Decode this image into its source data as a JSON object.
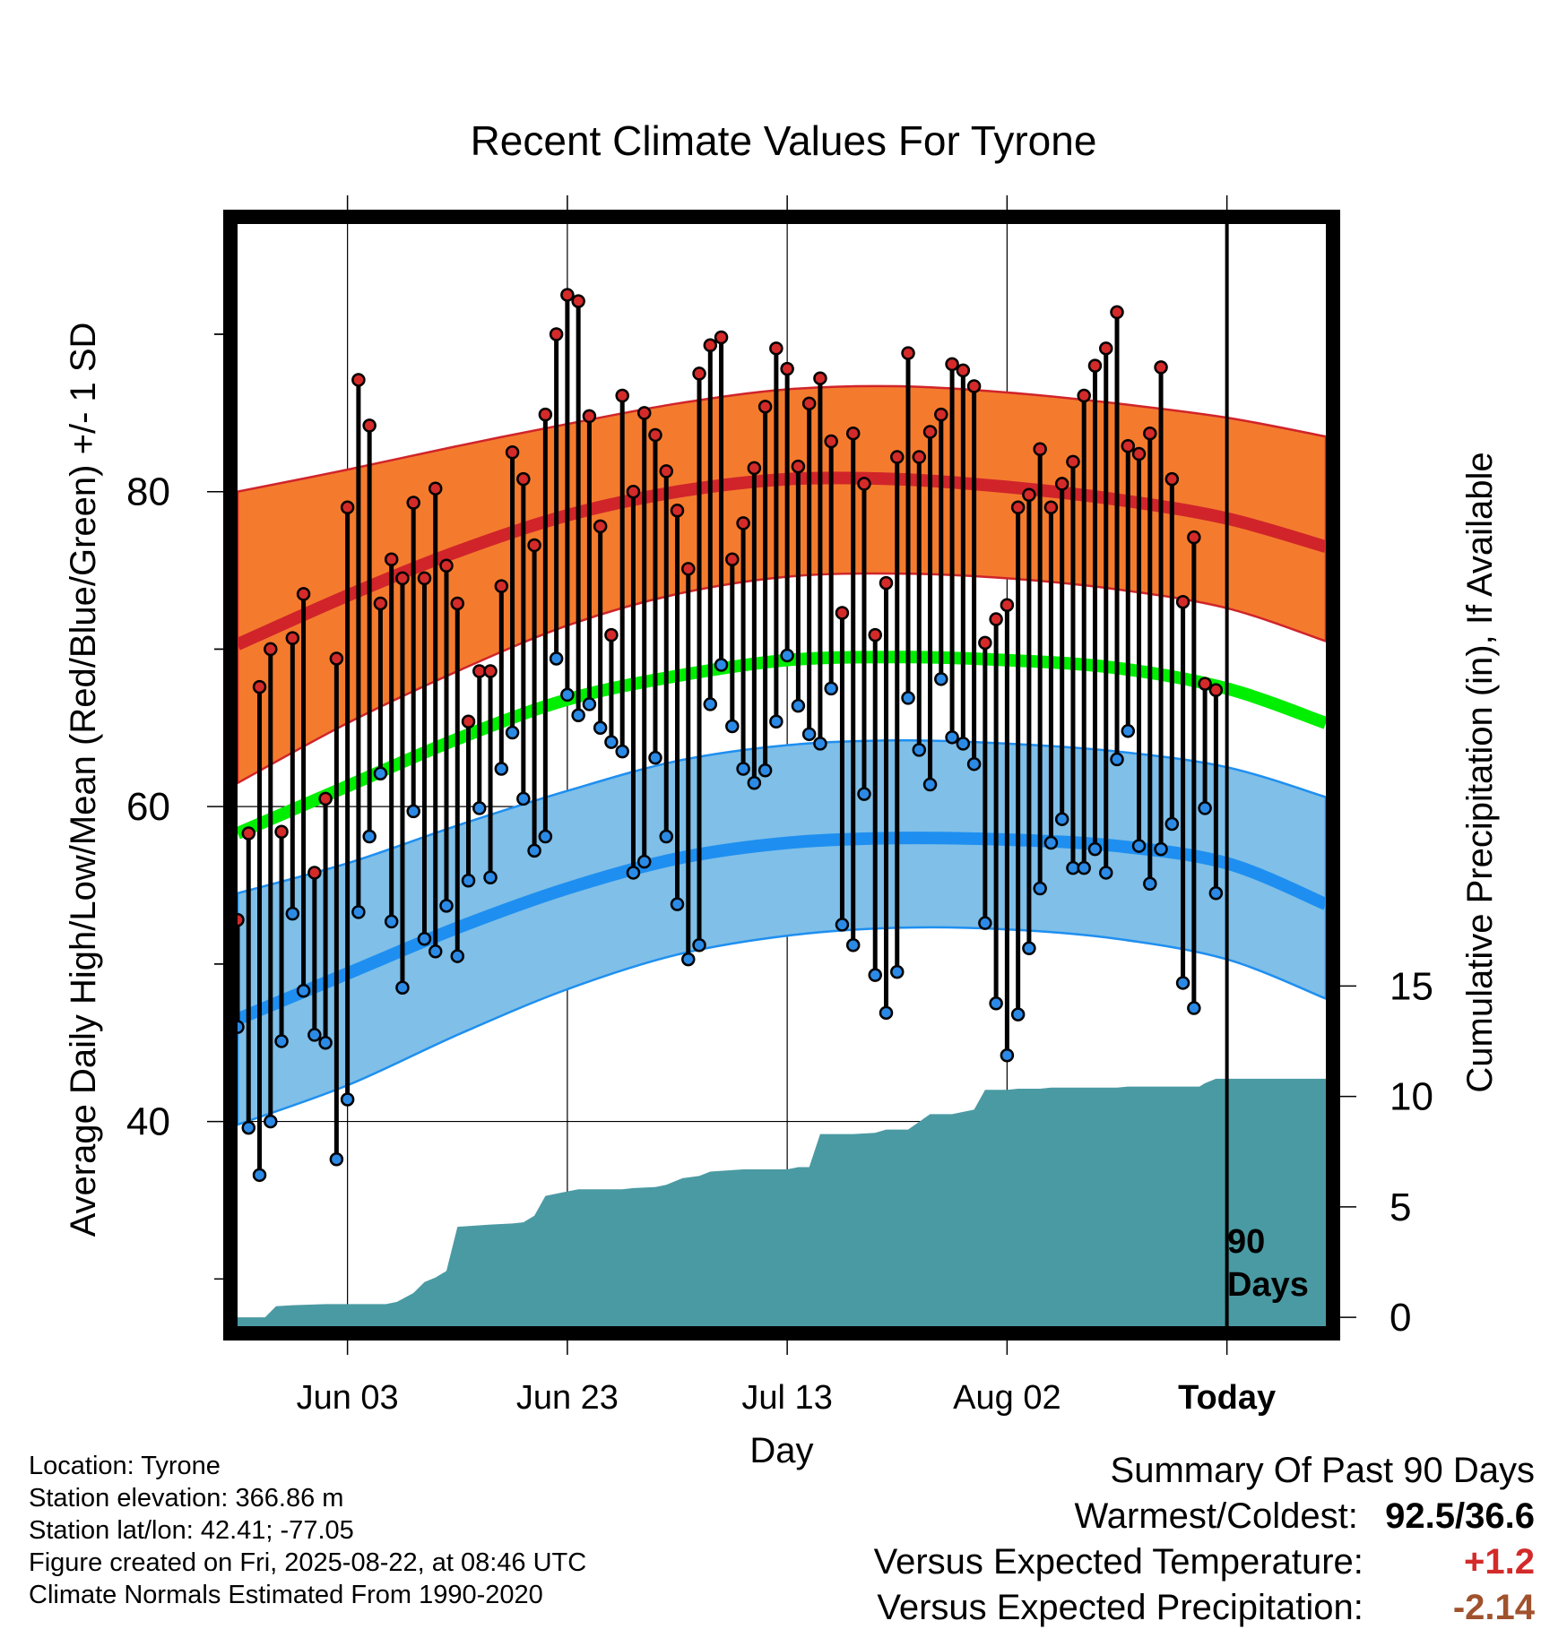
{
  "chart_data": {
    "type": "line",
    "title": "Recent Climate Values For Tyrone",
    "xlabel": "Day",
    "ylabel_left": "Average Daily High/Low/Mean (Red/Blue/Green) +/- 1 SD",
    "ylabel_right": "Cumulative Precipitation (in), If Available",
    "x_tick_labels": [
      "Jun 03",
      "Jun 23",
      "Jul 13",
      "Aug 02",
      "Today"
    ],
    "y_left_ticks": [
      40,
      60,
      80
    ],
    "y_left_range": [
      27,
      97
    ],
    "y_right_ticks": [
      0,
      5,
      10,
      15
    ],
    "y_right_range": [
      -0.4,
      49.5
    ],
    "x_range_days": [
      -90,
      9
    ],
    "today_marker_label": [
      "90",
      "Days"
    ],
    "grid": true,
    "colors": {
      "high_band": "#f47b2e",
      "high_line": "#d0242a",
      "low_band": "#7fbfe8",
      "low_line": "#1e8ff0",
      "mean_line": "#00ee00",
      "precip": "#4a9aa3",
      "high_dot": "#d42a2a",
      "low_dot": "#2b8ae6"
    },
    "normals": {
      "x_days": [
        -90,
        -80,
        -70,
        -60,
        -50,
        -40,
        -30,
        -20,
        -10,
        0,
        9
      ],
      "high_mean": [
        70.3,
        73.4,
        76.2,
        78.5,
        80.0,
        80.8,
        80.8,
        80.3,
        79.5,
        78.3,
        76.5
      ],
      "high_upper": [
        80.0,
        81.4,
        82.9,
        84.3,
        85.6,
        86.5,
        86.7,
        86.3,
        85.6,
        84.7,
        83.5
      ],
      "high_lower": [
        61.5,
        65.3,
        68.6,
        71.5,
        73.5,
        74.6,
        74.8,
        74.5,
        73.8,
        72.6,
        70.5
      ],
      "low_mean": [
        46.5,
        49.4,
        52.3,
        54.8,
        56.7,
        57.7,
        58.0,
        57.9,
        57.5,
        56.4,
        53.8
      ],
      "low_upper": [
        54.5,
        56.4,
        58.8,
        61.0,
        62.9,
        63.9,
        64.2,
        64.0,
        63.5,
        62.5,
        60.6
      ],
      "low_lower": [
        39.8,
        42.3,
        45.5,
        48.4,
        50.6,
        51.8,
        52.3,
        52.2,
        51.6,
        50.3,
        47.8
      ],
      "mean": [
        58.3,
        61.3,
        64.3,
        66.8,
        68.3,
        69.3,
        69.5,
        69.3,
        68.8,
        67.5,
        65.3
      ]
    },
    "daily_high": [
      52.8,
      58.3,
      67.6,
      70.0,
      58.4,
      70.7,
      73.5,
      55.8,
      60.5,
      69.4,
      79.0,
      87.1,
      84.2,
      72.9,
      75.7,
      74.5,
      79.3,
      74.5,
      80.2,
      75.3,
      72.9,
      65.4,
      68.6,
      68.6,
      74.0,
      82.5,
      80.8,
      76.6,
      84.9,
      90.0,
      92.5,
      92.1,
      84.8,
      77.8,
      70.9,
      86.1,
      80.0,
      85.0,
      83.6,
      81.3,
      78.8,
      75.1,
      87.5,
      89.3,
      89.8,
      75.7,
      78.0,
      81.5,
      85.4,
      89.1,
      87.8,
      81.6,
      85.6,
      87.2,
      83.2,
      72.3,
      83.7,
      80.5,
      70.9,
      74.2,
      82.2,
      88.8,
      82.2,
      83.8,
      84.9,
      88.1,
      87.7,
      86.7,
      70.4,
      71.9,
      72.8,
      79.0,
      79.8,
      82.7,
      79.0,
      80.5,
      81.9,
      86.1,
      88.0,
      89.1,
      91.4,
      82.9,
      82.4,
      83.7,
      87.9,
      80.8,
      73.0,
      77.1,
      67.8,
      67.4
    ],
    "daily_low": [
      46.0,
      39.6,
      36.6,
      40.0,
      45.1,
      53.2,
      48.3,
      45.5,
      45.0,
      37.6,
      41.4,
      53.3,
      58.1,
      62.1,
      52.7,
      48.5,
      59.7,
      51.6,
      50.8,
      53.7,
      50.5,
      55.3,
      59.9,
      55.5,
      62.4,
      64.7,
      60.5,
      57.2,
      58.1,
      69.4,
      67.1,
      65.8,
      66.5,
      65.0,
      64.1,
      63.5,
      55.8,
      56.5,
      63.1,
      58.1,
      53.8,
      50.3,
      51.2,
      66.5,
      69.0,
      65.1,
      62.4,
      61.5,
      62.3,
      65.4,
      69.6,
      66.4,
      64.6,
      64.0,
      67.5,
      52.5,
      51.2,
      60.8,
      49.3,
      46.9,
      49.5,
      66.9,
      63.6,
      61.4,
      68.1,
      64.4,
      64.0,
      62.7,
      52.6,
      47.5,
      44.2,
      46.8,
      51.0,
      54.8,
      57.7,
      59.2,
      56.1,
      56.1,
      57.3,
      55.8,
      63.0,
      64.8,
      57.5,
      55.1,
      57.3,
      58.9,
      48.8,
      47.2,
      59.9,
      54.5
    ],
    "precip_cumulative": {
      "x_days": [
        -90,
        -87.5,
        -86.5,
        -85,
        -82,
        -80,
        -78,
        -76.5,
        -75.5,
        -74,
        -73,
        -72,
        -71,
        -70,
        -67,
        -65,
        -64,
        -63,
        -62,
        -59,
        -55,
        -54,
        -52,
        -51,
        -49.5,
        -48,
        -47,
        -44,
        -40,
        -39,
        -38,
        -37,
        -34,
        -32,
        -31,
        -30,
        -29,
        -27,
        -25,
        -24,
        -23,
        -22,
        -20,
        -19,
        -18,
        -17,
        -16,
        -11,
        -10,
        -9,
        -2.5,
        -2,
        -1,
        0,
        9
      ],
      "values": [
        0,
        0,
        0.5,
        0.55,
        0.6,
        0.6,
        0.6,
        0.6,
        0.7,
        1.1,
        1.6,
        1.8,
        2.1,
        4.1,
        4.2,
        4.25,
        4.3,
        4.6,
        5.5,
        5.8,
        5.8,
        5.85,
        5.9,
        6.0,
        6.3,
        6.4,
        6.6,
        6.7,
        6.7,
        6.8,
        6.8,
        8.3,
        8.3,
        8.35,
        8.5,
        8.5,
        8.5,
        9.2,
        9.2,
        9.3,
        9.4,
        10.3,
        10.3,
        10.35,
        10.35,
        10.35,
        10.4,
        10.4,
        10.4,
        10.45,
        10.45,
        10.6,
        10.8,
        10.8,
        10.8
      ]
    }
  },
  "footer": {
    "location": "Location: Tyrone",
    "elevation": "Station elevation: 366.86 m",
    "latlon": "Station lat/lon: 42.41; -77.05",
    "created": "Figure created on Fri, 2025-08-22, at 08:46 UTC",
    "normals": "Climate Normals Estimated From 1990-2020"
  },
  "summary": {
    "title": "Summary Of Past 90 Days",
    "warm_cold_label": "Warmest/Coldest:",
    "warm_cold_value": "92.5/36.6",
    "temp_label": "Versus Expected Temperature:",
    "temp_value": "+1.2",
    "temp_color": "#d42a2a",
    "precip_label": "Versus Expected Precipitation:",
    "precip_value": "-2.14",
    "precip_color": "#a0522d"
  }
}
